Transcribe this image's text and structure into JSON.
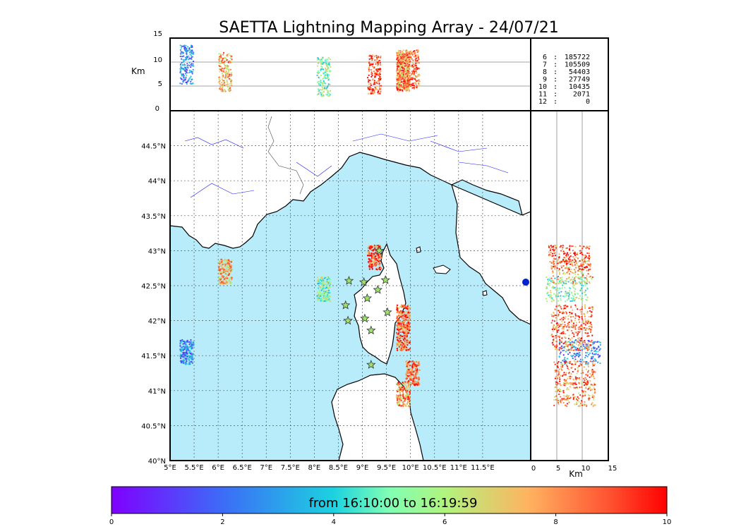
{
  "title": "SAETTA Lightning Mapping Array - 24/07/21",
  "colorbar": {
    "label": "from 16:10:00 to 16:19:59",
    "ticks": [
      "0",
      "2",
      "4",
      "6",
      "8",
      "10"
    ],
    "range": [
      0,
      10
    ]
  },
  "altitude_panel": {
    "ylabel": "Km",
    "yticks": [
      "15",
      "10",
      "5",
      "0"
    ]
  },
  "side_panel": {
    "xlabel": "Km",
    "xticks": [
      "0",
      "5",
      "10",
      "15"
    ]
  },
  "stats": [
    {
      "stations": "6",
      "sep": ":",
      "count": "185722",
      "highlight": false
    },
    {
      "stations": "7",
      "sep": ":",
      "count": "105509",
      "highlight": true
    },
    {
      "stations": "8",
      "sep": ":",
      "count": "54403",
      "highlight": false
    },
    {
      "stations": "9",
      "sep": ":",
      "count": "27749",
      "highlight": false
    },
    {
      "stations": "10",
      "sep": ":",
      "count": "10435",
      "highlight": false
    },
    {
      "stations": "11",
      "sep": ":",
      "count": "2071",
      "highlight": false
    },
    {
      "stations": "12",
      "sep": ":",
      "count": "0",
      "highlight": false
    }
  ],
  "map": {
    "lon_ticks": [
      "5°E",
      "5.5°E",
      "6°E",
      "6.5°E",
      "7°E",
      "7.5°E",
      "8°E",
      "8.5°E",
      "9°E",
      "9.5°E",
      "10°E",
      "10.5°E",
      "11°E",
      "11.5°E"
    ],
    "lat_ticks": [
      "44.5°N",
      "44°N",
      "43.5°N",
      "43°N",
      "42.5°N",
      "42°N",
      "41.5°N",
      "41°N",
      "40.5°N",
      "40°N"
    ],
    "sea_color": "#b8ecfa",
    "station_color": "#9be36b"
  },
  "chart_data": {
    "type": "scatter",
    "title": "SAETTA Lightning Mapping Array - 24/07/21",
    "xlim": [
      5,
      12.5
    ],
    "ylim": [
      40,
      45
    ],
    "altitude_range_km": [
      0,
      15
    ],
    "color_scale_minutes": [
      0,
      10
    ],
    "stations": [
      {
        "lon": 9.35,
        "lat": 43.0
      },
      {
        "lon": 8.72,
        "lat": 42.57
      },
      {
        "lon": 9.03,
        "lat": 42.55
      },
      {
        "lon": 9.48,
        "lat": 42.58
      },
      {
        "lon": 9.32,
        "lat": 42.44
      },
      {
        "lon": 9.1,
        "lat": 42.32
      },
      {
        "lon": 8.65,
        "lat": 42.22
      },
      {
        "lon": 9.52,
        "lat": 42.12
      },
      {
        "lon": 9.05,
        "lat": 42.03
      },
      {
        "lon": 8.7,
        "lat": 42.0
      },
      {
        "lon": 9.18,
        "lat": 41.86
      },
      {
        "lon": 9.18,
        "lat": 41.37
      }
    ],
    "cells": [
      {
        "lon": 5.35,
        "lat": 41.55,
        "alt_km": 9.5,
        "t_min": 2.5
      },
      {
        "lon": 6.15,
        "lat": 42.7,
        "alt_km": 8.0,
        "t_min": 7.5
      },
      {
        "lon": 8.2,
        "lat": 42.45,
        "alt_km": 7.0,
        "t_min": 5.3
      },
      {
        "lon": 9.25,
        "lat": 42.9,
        "alt_km": 7.5,
        "t_min": 9.0
      },
      {
        "lon": 9.85,
        "lat": 42.05,
        "alt_km": 8.0,
        "t_min": 8.5
      },
      {
        "lon": 9.85,
        "lat": 41.75,
        "alt_km": 8.0,
        "t_min": 8.5
      },
      {
        "lon": 10.05,
        "lat": 41.25,
        "alt_km": 8.5,
        "t_min": 8.5
      },
      {
        "lon": 9.85,
        "lat": 40.95,
        "alt_km": 8.5,
        "t_min": 8.0
      }
    ]
  }
}
